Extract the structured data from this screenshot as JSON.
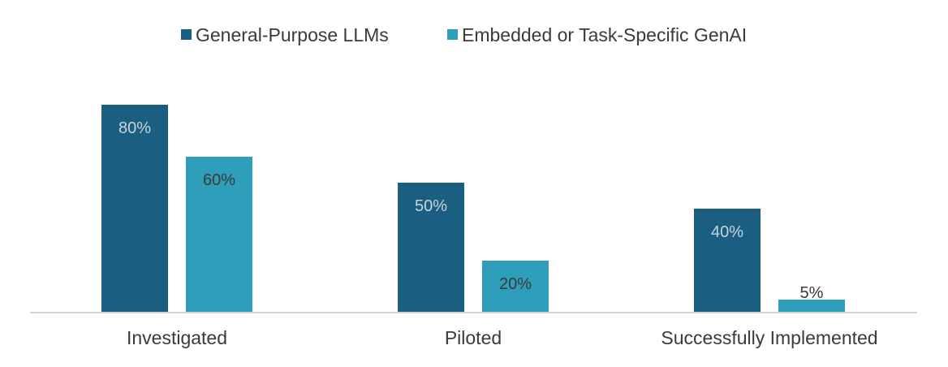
{
  "chart_data": {
    "type": "bar",
    "title": "",
    "xlabel": "",
    "ylabel": "",
    "ylim": [
      0,
      100
    ],
    "grid": false,
    "legend": "top-center",
    "categories": [
      "Investigated",
      "Piloted",
      "Successfully Implemented"
    ],
    "series": [
      {
        "name": "General-Purpose LLMs",
        "color": "#1a5f82",
        "values": [
          80,
          50,
          40
        ],
        "labels": [
          "80%",
          "50%",
          "40%"
        ],
        "label_color": "#c9d3da"
      },
      {
        "name": "Embedded or Task-Specific GenAI",
        "color": "#2e9ebb",
        "values": [
          60,
          20,
          5
        ],
        "labels": [
          "60%",
          "20%",
          "5%"
        ],
        "label_color": "#3a3a3a"
      }
    ],
    "axis_color": "#d4d4d4"
  }
}
